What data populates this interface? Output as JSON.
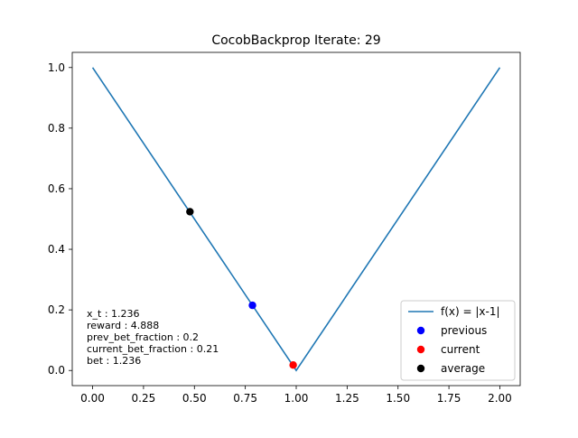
{
  "chart_data": {
    "type": "line",
    "title": "CocobBackprop Iterate: 29",
    "xlabel": "",
    "ylabel": "",
    "xlim": [
      -0.1,
      2.1
    ],
    "ylim": [
      -0.05,
      1.05
    ],
    "grid": false,
    "legend_position": "bottom-right",
    "xticks": [
      "0.00",
      "0.25",
      "0.50",
      "0.75",
      "1.00",
      "1.25",
      "1.50",
      "1.75",
      "2.00"
    ],
    "xtick_values": [
      0,
      0.25,
      0.5,
      0.75,
      1.0,
      1.25,
      1.5,
      1.75,
      2.0
    ],
    "yticks": [
      "0.0",
      "0.2",
      "0.4",
      "0.6",
      "0.8",
      "1.0"
    ],
    "ytick_values": [
      0,
      0.2,
      0.4,
      0.6,
      0.8,
      1.0
    ],
    "series": [
      {
        "name": "f(x) = |x-1|",
        "kind": "line",
        "color": "#1f77b4",
        "x": [
          0,
          1,
          2
        ],
        "y": [
          1,
          0,
          1
        ]
      }
    ],
    "points": [
      {
        "name": "previous",
        "color": "#0000ff",
        "x": 0.785,
        "y": 0.215
      },
      {
        "name": "current",
        "color": "#ff0000",
        "x": 0.985,
        "y": 0.018
      },
      {
        "name": "average",
        "color": "#000000",
        "x": 0.478,
        "y": 0.524
      }
    ],
    "annotations": [
      "x_t : 1.236",
      "reward : 4.888",
      "prev_bet_fraction : 0.2",
      "current_bet_fraction : 0.21",
      "bet : 1.236"
    ]
  }
}
